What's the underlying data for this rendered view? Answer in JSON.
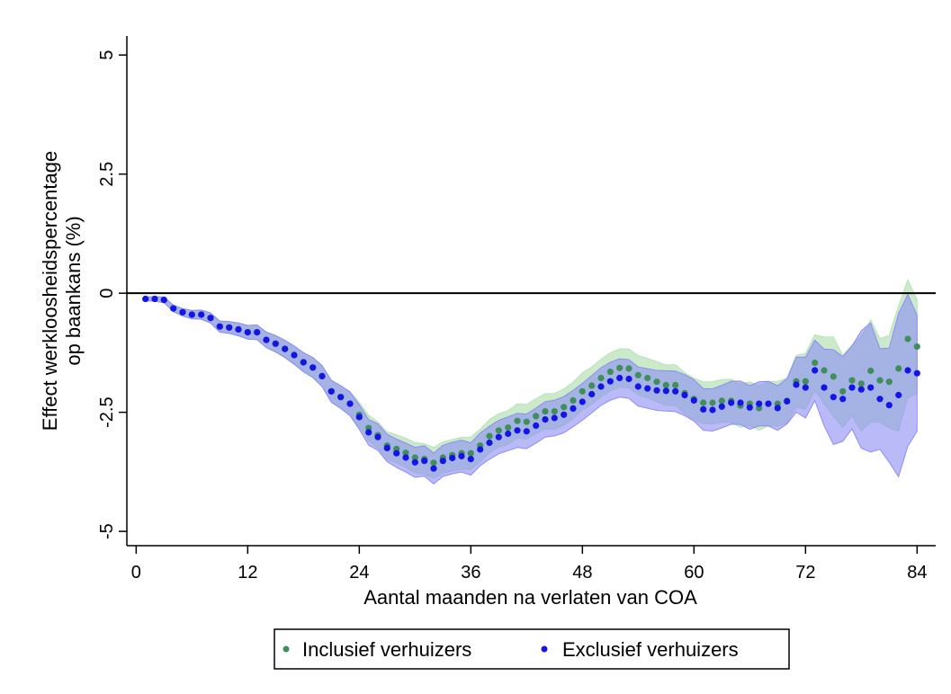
{
  "chart_data": {
    "type": "scatter",
    "title": "",
    "xlabel": "Aantal maanden na verlaten van COA",
    "ylabel_line1": "Effect werkloosheidspercentage",
    "ylabel_line2": "op baankans (%)",
    "xlim": [
      -1,
      86
    ],
    "ylim": [
      -5.3,
      5.4
    ],
    "xticks": [
      0,
      12,
      24,
      36,
      48,
      60,
      72,
      84
    ],
    "xtick_labels": [
      "0",
      "12",
      "24",
      "36",
      "48",
      "60",
      "72",
      "84"
    ],
    "yticks": [
      -5,
      -2.5,
      0,
      2.5,
      5
    ],
    "ytick_labels": [
      "-5",
      "-2.5",
      "0",
      "2.5",
      "5"
    ],
    "reference_line_y": 0,
    "grid": false,
    "legend_position": "bottom",
    "x": [
      1,
      2,
      3,
      4,
      5,
      6,
      7,
      8,
      9,
      10,
      11,
      12,
      13,
      14,
      15,
      16,
      17,
      18,
      19,
      20,
      21,
      22,
      23,
      24,
      25,
      26,
      27,
      28,
      29,
      30,
      31,
      32,
      33,
      34,
      35,
      36,
      37,
      38,
      39,
      40,
      41,
      42,
      43,
      44,
      45,
      46,
      47,
      48,
      49,
      50,
      51,
      52,
      53,
      54,
      55,
      56,
      57,
      58,
      59,
      60,
      61,
      62,
      63,
      64,
      65,
      66,
      67,
      68,
      69,
      70,
      71,
      72,
      73,
      74,
      75,
      76,
      77,
      78,
      79,
      80,
      81,
      82,
      83,
      84
    ],
    "series": [
      {
        "name": "Inclusief verhuizers",
        "color": "#3f8f5a",
        "band_color": "#b8e3b8",
        "y": [
          -0.12,
          -0.12,
          -0.14,
          -0.32,
          -0.4,
          -0.45,
          -0.45,
          -0.52,
          -0.7,
          -0.72,
          -0.76,
          -0.82,
          -0.82,
          -0.98,
          -1.06,
          -1.17,
          -1.3,
          -1.45,
          -1.56,
          -1.74,
          -2.06,
          -2.18,
          -2.32,
          -2.55,
          -2.83,
          -2.98,
          -3.2,
          -3.27,
          -3.35,
          -3.45,
          -3.48,
          -3.56,
          -3.45,
          -3.4,
          -3.36,
          -3.36,
          -3.2,
          -3.0,
          -2.88,
          -2.82,
          -2.68,
          -2.7,
          -2.58,
          -2.48,
          -2.48,
          -2.39,
          -2.25,
          -2.06,
          -1.94,
          -1.78,
          -1.65,
          -1.57,
          -1.58,
          -1.72,
          -1.78,
          -1.86,
          -1.93,
          -1.93,
          -2.1,
          -2.22,
          -2.3,
          -2.3,
          -2.26,
          -2.26,
          -2.36,
          -2.32,
          -2.41,
          -2.32,
          -2.32,
          -2.26,
          -1.85,
          -1.85,
          -1.46,
          -1.62,
          -1.75,
          -2.06,
          -1.83,
          -1.9,
          -1.63,
          -1.83,
          -1.86,
          -1.58,
          -0.96,
          -1.12
        ]
      },
      {
        "name": "Exclusief verhuizers",
        "color": "#1414e6",
        "band_color": "#8c8cf5",
        "y": [
          -0.12,
          -0.12,
          -0.14,
          -0.32,
          -0.4,
          -0.45,
          -0.45,
          -0.52,
          -0.7,
          -0.72,
          -0.76,
          -0.82,
          -0.82,
          -0.98,
          -1.06,
          -1.17,
          -1.3,
          -1.45,
          -1.56,
          -1.74,
          -2.06,
          -2.18,
          -2.32,
          -2.6,
          -2.92,
          -3.02,
          -3.25,
          -3.36,
          -3.45,
          -3.55,
          -3.52,
          -3.68,
          -3.52,
          -3.46,
          -3.42,
          -3.48,
          -3.28,
          -3.14,
          -3.02,
          -2.95,
          -2.88,
          -2.9,
          -2.78,
          -2.65,
          -2.62,
          -2.55,
          -2.42,
          -2.28,
          -2.12,
          -1.96,
          -1.85,
          -1.78,
          -1.8,
          -1.96,
          -2.0,
          -2.04,
          -2.05,
          -2.06,
          -2.14,
          -2.25,
          -2.44,
          -2.45,
          -2.38,
          -2.3,
          -2.3,
          -2.4,
          -2.32,
          -2.32,
          -2.41,
          -2.27,
          -1.92,
          -1.98,
          -1.62,
          -1.98,
          -2.18,
          -2.22,
          -1.98,
          -2.02,
          -1.98,
          -2.22,
          -2.35,
          -2.14,
          -1.62,
          -1.68
        ]
      }
    ]
  }
}
